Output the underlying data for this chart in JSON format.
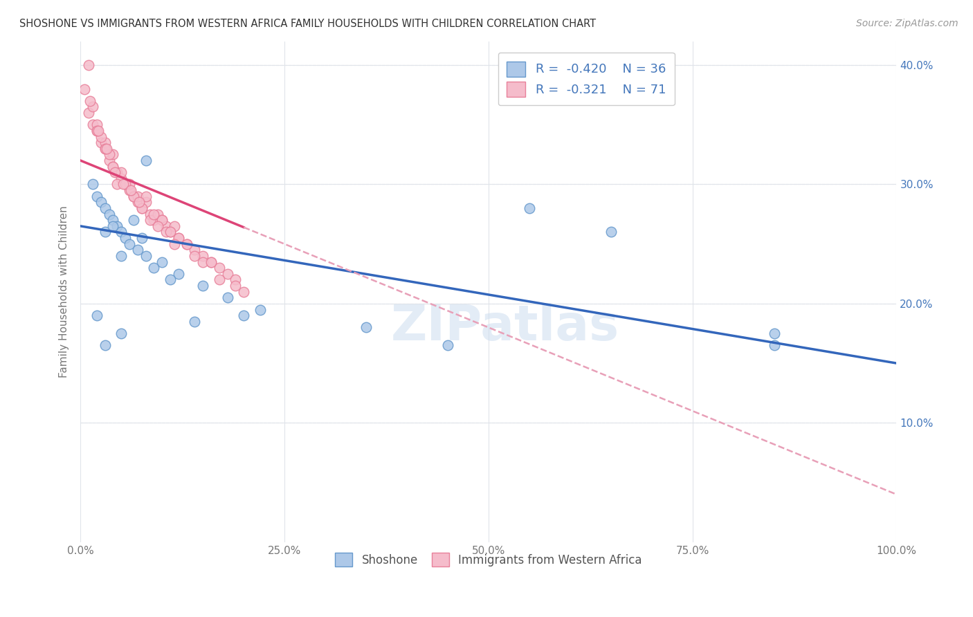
{
  "title": "SHOSHONE VS IMMIGRANTS FROM WESTERN AFRICA FAMILY HOUSEHOLDS WITH CHILDREN CORRELATION CHART",
  "source": "Source: ZipAtlas.com",
  "ylabel": "Family Households with Children",
  "xlabel": "",
  "xlim": [
    0.0,
    100.0
  ],
  "ylim": [
    0.0,
    42.0
  ],
  "yticks": [
    10.0,
    20.0,
    30.0,
    40.0
  ],
  "xticks": [
    0.0,
    25.0,
    50.0,
    75.0,
    100.0
  ],
  "shoshone_color": "#adc8e8",
  "shoshone_edge": "#6699cc",
  "immigrants_color": "#f5bccb",
  "immigrants_edge": "#e8809a",
  "trend_shoshone_color": "#3366bb",
  "trend_immigrants_color": "#dd4477",
  "trend_ext_color": "#e8a0b8",
  "watermark": "ZIPatlas",
  "shoshone_trend_x0": 0.0,
  "shoshone_trend_y0": 26.5,
  "shoshone_trend_x1": 100.0,
  "shoshone_trend_y1": 15.0,
  "immigrants_trend_x0": 0.0,
  "immigrants_trend_y0": 32.0,
  "immigrants_trend_x1": 100.0,
  "immigrants_trend_y1": 4.0,
  "immigrants_solid_end": 20.0,
  "shoshone_x": [
    1.5,
    2.0,
    2.5,
    3.0,
    3.5,
    4.0,
    4.5,
    5.0,
    5.5,
    6.0,
    7.0,
    8.0,
    10.0,
    12.0,
    15.0,
    18.0,
    22.0,
    8.0,
    3.0,
    4.0,
    5.0,
    6.5,
    7.5,
    9.0,
    11.0,
    14.0,
    20.0,
    35.0,
    45.0,
    55.0,
    65.0,
    85.0,
    85.0,
    2.0,
    3.0,
    5.0
  ],
  "shoshone_y": [
    30.0,
    29.0,
    28.5,
    28.0,
    27.5,
    27.0,
    26.5,
    26.0,
    25.5,
    25.0,
    24.5,
    24.0,
    23.5,
    22.5,
    21.5,
    20.5,
    19.5,
    32.0,
    26.0,
    26.5,
    24.0,
    27.0,
    25.5,
    23.0,
    22.0,
    18.5,
    19.0,
    18.0,
    16.5,
    28.0,
    26.0,
    16.5,
    17.5,
    19.0,
    16.5,
    17.5
  ],
  "immigrants_x": [
    0.5,
    1.0,
    1.5,
    2.0,
    2.5,
    3.0,
    3.5,
    4.0,
    4.5,
    5.0,
    5.5,
    6.0,
    6.5,
    7.0,
    7.5,
    8.0,
    8.5,
    9.0,
    9.5,
    10.0,
    10.5,
    11.0,
    11.5,
    12.0,
    13.0,
    14.0,
    15.0,
    16.0,
    17.0,
    18.0,
    19.0,
    20.0,
    2.0,
    3.0,
    4.0,
    5.0,
    6.0,
    7.0,
    1.0,
    2.5,
    3.5,
    4.5,
    8.0,
    10.0,
    12.0,
    14.0,
    1.5,
    2.0,
    3.0,
    4.0,
    5.5,
    6.5,
    7.5,
    8.5,
    9.5,
    10.5,
    11.5,
    13.0,
    15.0,
    17.0,
    19.0,
    1.2,
    2.2,
    3.2,
    4.2,
    5.2,
    6.2,
    7.2,
    9.0,
    11.0,
    16.0
  ],
  "immigrants_y": [
    38.0,
    36.0,
    35.0,
    34.5,
    33.5,
    33.0,
    32.0,
    31.5,
    31.0,
    30.5,
    30.0,
    29.5,
    29.0,
    28.5,
    28.0,
    28.5,
    27.5,
    27.0,
    27.5,
    27.0,
    26.5,
    26.0,
    26.5,
    25.5,
    25.0,
    24.5,
    24.0,
    23.5,
    23.0,
    22.5,
    22.0,
    21.0,
    35.0,
    33.5,
    32.5,
    31.0,
    30.0,
    29.0,
    40.0,
    34.0,
    32.5,
    30.0,
    29.0,
    27.0,
    25.5,
    24.0,
    36.5,
    34.5,
    33.0,
    31.5,
    30.0,
    29.0,
    28.0,
    27.0,
    26.5,
    26.0,
    25.0,
    25.0,
    23.5,
    22.0,
    21.5,
    37.0,
    34.5,
    33.0,
    31.0,
    30.0,
    29.5,
    28.5,
    27.5,
    26.0,
    23.5
  ]
}
